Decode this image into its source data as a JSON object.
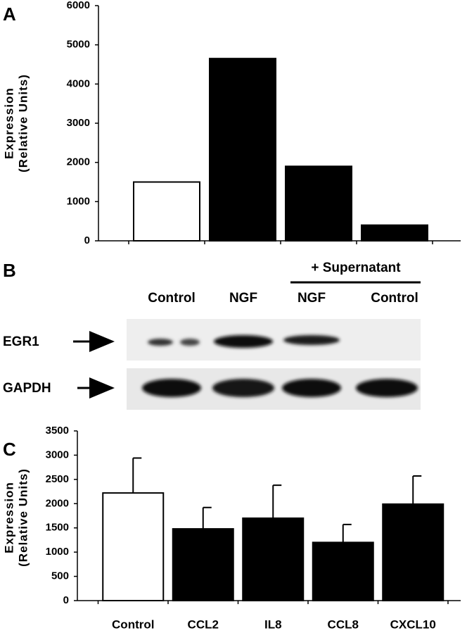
{
  "chart_data": [
    {
      "type": "bar",
      "panel": "A",
      "ylabel": [
        "Expression",
        "(Relative Units)"
      ],
      "categories": [
        null,
        null,
        null,
        null
      ],
      "values": [
        1500,
        4650,
        1900,
        400
      ],
      "colors": [
        "#ffffff",
        "#000000",
        "#000000",
        "#000000"
      ],
      "ylim": [
        0,
        6000
      ],
      "yticks": [
        0,
        1000,
        2000,
        3000,
        4000,
        5000,
        6000
      ]
    },
    {
      "type": "bar",
      "panel": "C",
      "ylabel": [
        "Expression",
        "(Relative Units)"
      ],
      "categories": [
        "Control",
        "CCL2",
        "IL8",
        "CCL8",
        "CXCL10"
      ],
      "values": [
        2220,
        1480,
        1700,
        1200,
        1990
      ],
      "errors": [
        720,
        440,
        680,
        370,
        580
      ],
      "colors": [
        "#ffffff",
        "#000000",
        "#000000",
        "#000000",
        "#000000"
      ],
      "ylim": [
        0,
        3500
      ],
      "yticks": [
        0,
        500,
        1000,
        1500,
        2000,
        2500,
        3000,
        3500
      ]
    }
  ],
  "blot": {
    "panel": "B",
    "header": "+ Supernatant",
    "lanes": [
      "Control",
      "NGF",
      "NGF",
      "Control"
    ],
    "rows": [
      "EGR1",
      "GAPDH"
    ]
  }
}
